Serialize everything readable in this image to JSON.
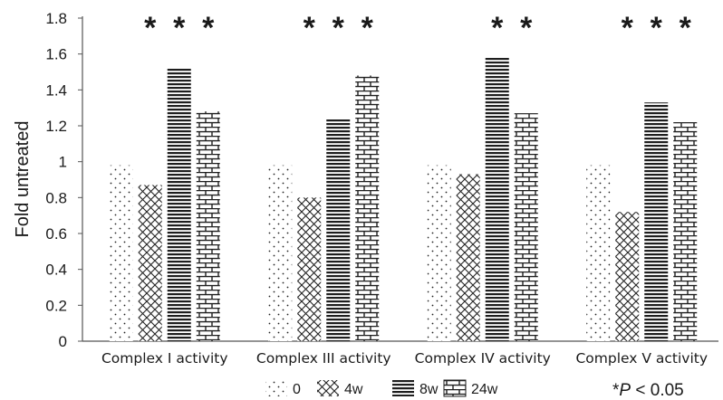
{
  "chart_data": {
    "type": "bar",
    "title": "",
    "xlabel": "",
    "ylabel": "Fold untreated",
    "ylim": [
      0,
      1.8
    ],
    "yticks": [
      "0",
      "0.2",
      "0.4",
      "0.6",
      "0.8",
      "1",
      "1.2",
      "1.4",
      "1.6",
      "1.8"
    ],
    "grid": false,
    "legend_position": "bottom",
    "categories": [
      "Complex I activity",
      "Complex III activity",
      "Complex IV activity",
      "Complex V activity"
    ],
    "series": [
      {
        "name": "0",
        "pattern": "dots",
        "values": [
          0.98,
          0.98,
          0.98,
          0.98
        ]
      },
      {
        "name": "4w",
        "pattern": "crosshatch",
        "values": [
          0.87,
          0.8,
          0.93,
          0.72
        ]
      },
      {
        "name": "8w",
        "pattern": "horizontal",
        "values": [
          1.52,
          1.24,
          1.58,
          1.33
        ]
      },
      {
        "name": "24w",
        "pattern": "brick",
        "values": [
          1.28,
          1.48,
          1.27,
          1.22
        ]
      }
    ],
    "significance": [
      [
        false,
        true,
        true,
        true
      ],
      [
        false,
        true,
        true,
        true
      ],
      [
        false,
        false,
        true,
        true
      ],
      [
        false,
        true,
        true,
        true
      ]
    ],
    "significance_marker": "*",
    "annotation_prefix": "*",
    "annotation_P": "P",
    "annotation_rest": " < 0.05",
    "colors": {
      "ink": "#1a1a1a",
      "background": "#ffffff"
    }
  }
}
